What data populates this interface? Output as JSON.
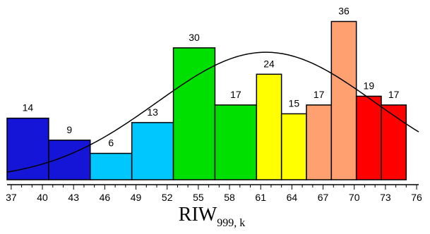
{
  "chart_data": {
    "type": "bar",
    "xlabel_main": "RIW",
    "xlabel_sub": "999, k",
    "x_ticks": [
      37,
      40,
      43,
      46,
      49,
      52,
      55,
      58,
      61,
      64,
      67,
      70,
      73,
      76
    ],
    "xlim": [
      36.6,
      76.2
    ],
    "bars": [
      {
        "x0": 36.6,
        "x1": 40.6,
        "value": 14,
        "color": "#1515d8"
      },
      {
        "x0": 40.6,
        "x1": 44.6,
        "value": 9,
        "color": "#1515d8"
      },
      {
        "x0": 44.6,
        "x1": 48.6,
        "value": 6,
        "color": "#00c8ff"
      },
      {
        "x0": 48.6,
        "x1": 52.6,
        "value": 13,
        "color": "#00c8ff"
      },
      {
        "x0": 52.6,
        "x1": 56.6,
        "value": 30,
        "color": "#00e000"
      },
      {
        "x0": 56.6,
        "x1": 60.6,
        "value": 17,
        "color": "#00e000"
      },
      {
        "x0": 60.6,
        "x1": 63.0,
        "value": 24,
        "color": "#ffff00"
      },
      {
        "x0": 63.0,
        "x1": 65.4,
        "value": 15,
        "color": "#ffff00"
      },
      {
        "x0": 65.4,
        "x1": 67.8,
        "value": 17,
        "color": "#ffa070"
      },
      {
        "x0": 67.8,
        "x1": 70.2,
        "value": 36,
        "color": "#ffa070"
      },
      {
        "x0": 70.2,
        "x1": 72.6,
        "value": 19,
        "color": "#ff0000"
      },
      {
        "x0": 72.6,
        "x1": 75.0,
        "value": 17,
        "color": "#ff0000"
      }
    ],
    "ylim": [
      0,
      38
    ],
    "fit_curve": {
      "type": "normal",
      "mean": 61.5,
      "sd": 10.5,
      "peak": 29
    }
  }
}
